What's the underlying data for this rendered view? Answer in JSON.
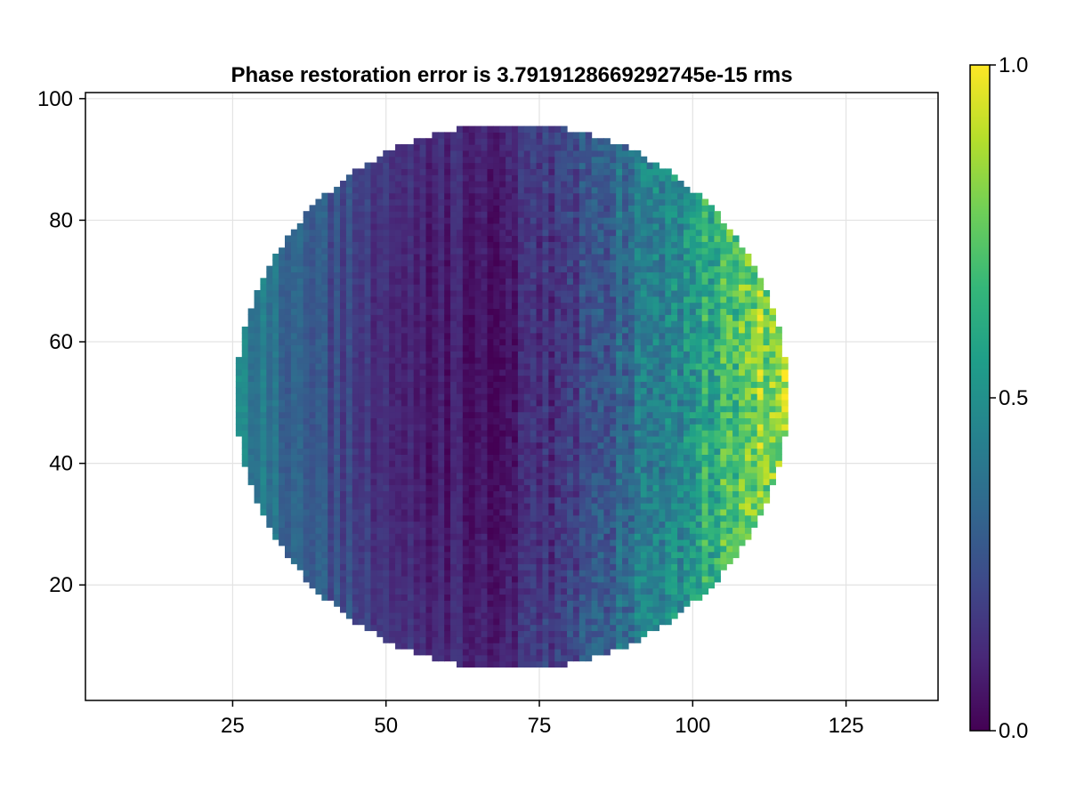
{
  "chart_data": {
    "type": "heatmap",
    "title": "Phase restoration error is 3.7919128669292745e-15 rms",
    "xlabel": "",
    "ylabel": "",
    "xlim": [
      1,
      140
    ],
    "ylim": [
      1,
      101
    ],
    "x_ticks": [
      25,
      50,
      75,
      100,
      125
    ],
    "x_tick_labels": [
      "25",
      "50",
      "75",
      "100",
      "125"
    ],
    "y_ticks": [
      20,
      40,
      60,
      80,
      100
    ],
    "y_tick_labels": [
      "20",
      "40",
      "60",
      "80",
      "100"
    ],
    "grid": true,
    "colormap": "viridis",
    "colorbar": {
      "range": [
        0.0,
        1.0
      ],
      "ticks": [
        0.0,
        0.5,
        1.0
      ],
      "tick_labels": [
        "0.0",
        "0.5",
        "1.0"
      ]
    },
    "aperture": {
      "shape": "circle",
      "center_x": 70.5,
      "center_y": 51,
      "radius": 45
    },
    "field_description": {
      "min_value_near_x": 64,
      "value_at_left_edge": 0.4,
      "value_at_right_edge": 0.85,
      "column_striping": true,
      "pixel_noise": true
    }
  },
  "colors": {
    "frame": "#000000",
    "grid": "#e3e3e3",
    "viridis": [
      "#440154",
      "#482878",
      "#3e4989",
      "#31688e",
      "#26828e",
      "#1f9e89",
      "#35b779",
      "#6ece58",
      "#b5de2b",
      "#fde725"
    ]
  }
}
